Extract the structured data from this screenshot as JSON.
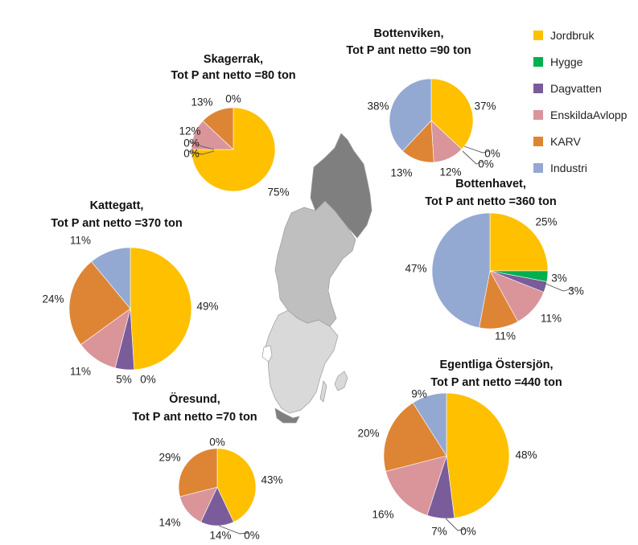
{
  "colors": {
    "Jordbruk": "#ffc000",
    "Hygge": "#00b050",
    "Dagvatten": "#7a5c9a",
    "EnskildaAvlopp": "#d9959a",
    "KARV": "#de8535",
    "Industri": "#93a9d2",
    "map_dark": "#7f7f7f",
    "map_mid": "#bfbfbf",
    "map_light": "#d9d9d9"
  },
  "map": {
    "name": "sweden-map"
  },
  "legend": {
    "items": [
      "Jordbruk",
      "Hygge",
      "Dagvatten",
      "EnskildaAvlopp",
      "KARV",
      "Industri"
    ]
  },
  "chart_data": [
    {
      "type": "pie",
      "title": "Skagerrak,",
      "subtitle": "Tot P ant netto =80 ton",
      "categories": [
        "Jordbruk",
        "Hygge",
        "Dagvatten",
        "EnskildaAvlopp",
        "KARV",
        "Industri"
      ],
      "values": [
        75,
        0,
        0,
        12,
        13,
        0
      ],
      "labels": [
        "75%",
        "0%",
        "0%",
        "12%",
        "13%",
        "0%"
      ]
    },
    {
      "type": "pie",
      "title": "Bottenviken,",
      "subtitle": "Tot P ant netto =90 ton",
      "categories": [
        "Jordbruk",
        "Hygge",
        "Dagvatten",
        "EnskildaAvlopp",
        "KARV",
        "Industri"
      ],
      "values": [
        37,
        0,
        0,
        12,
        13,
        38
      ],
      "labels": [
        "37%",
        "0%",
        "0%",
        "12%",
        "13%",
        "38%"
      ]
    },
    {
      "type": "pie",
      "title": "Kattegatt,",
      "subtitle": "Tot P ant netto =370 ton",
      "categories": [
        "Jordbruk",
        "Hygge",
        "Dagvatten",
        "EnskildaAvlopp",
        "KARV",
        "Industri"
      ],
      "values": [
        49,
        0,
        5,
        11,
        24,
        11
      ],
      "labels": [
        "49%",
        "0%",
        "5%",
        "11%",
        "24%",
        "11%"
      ]
    },
    {
      "type": "pie",
      "title": "Bottenhavet,",
      "subtitle": "Tot P ant netto =360 ton",
      "categories": [
        "Jordbruk",
        "Hygge",
        "Dagvatten",
        "EnskildaAvlopp",
        "KARV",
        "Industri"
      ],
      "values": [
        25,
        3,
        3,
        11,
        11,
        47
      ],
      "labels": [
        "25%",
        "3%",
        "3%",
        "11%",
        "11%",
        "47%"
      ]
    },
    {
      "type": "pie",
      "title": "Öresund,",
      "subtitle": "Tot P ant netto =70 ton",
      "categories": [
        "Jordbruk",
        "Hygge",
        "Dagvatten",
        "EnskildaAvlopp",
        "KARV",
        "Industri"
      ],
      "values": [
        43,
        0,
        14,
        14,
        29,
        0
      ],
      "labels": [
        "43%",
        "0%",
        "14%",
        "14%",
        "29%",
        "0%"
      ]
    },
    {
      "type": "pie",
      "title": "Egentliga Östersjön,",
      "subtitle": "Tot P ant netto =440 ton",
      "categories": [
        "Jordbruk",
        "Hygge",
        "Dagvatten",
        "EnskildaAvlopp",
        "KARV",
        "Industri"
      ],
      "values": [
        48,
        0,
        7,
        16,
        20,
        9
      ],
      "labels": [
        "48%",
        "0%",
        "7%",
        "16%",
        "20%",
        "9%"
      ]
    }
  ]
}
